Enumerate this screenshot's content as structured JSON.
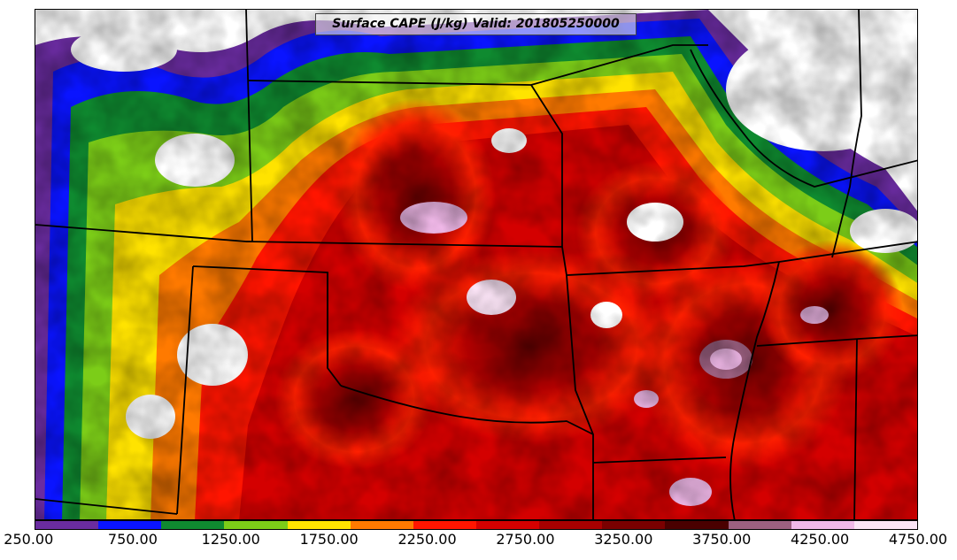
{
  "title": "Surface CAPE (J/kg) Valid: 201805250000",
  "colorbar": {
    "colors": [
      "#6a2ca0",
      "#0a14ff",
      "#0f8a30",
      "#7ccd18",
      "#ffe300",
      "#ff7a00",
      "#ff1500",
      "#d40000",
      "#a80000",
      "#7a0000",
      "#4a0000",
      "#9c6080",
      "#f0b8e8",
      "#fbe4f6"
    ],
    "tick_labels": [
      "250.00",
      "750.00",
      "1250.00",
      "1750.00",
      "2250.00",
      "2750.00",
      "3250.00",
      "3750.00",
      "4250.00",
      "4750.00"
    ]
  }
}
